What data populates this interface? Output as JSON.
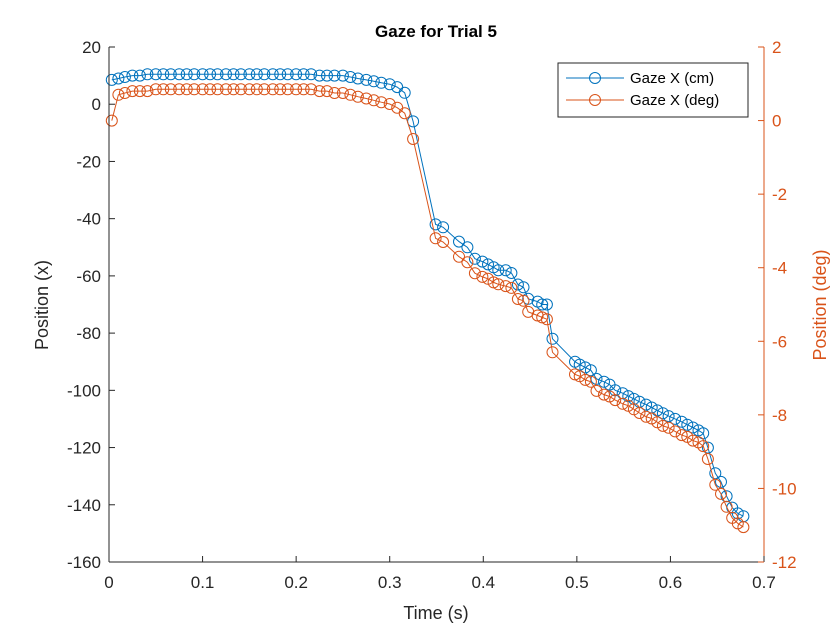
{
  "chart_data": {
    "type": "line",
    "title": "Gaze for Trial 5",
    "xlabel": "Time (s)",
    "ylabel_left": "Position (x)",
    "ylabel_right": "Position (deg)",
    "xlim": [
      0,
      0.7
    ],
    "ylim_left": [
      -160,
      20
    ],
    "ylim_right": [
      -12,
      2
    ],
    "xticks": [
      "0",
      "0.1",
      "0.2",
      "0.3",
      "0.4",
      "0.5",
      "0.6",
      "0.7"
    ],
    "yticks_left": [
      "20",
      "0",
      "-20",
      "-40",
      "-60",
      "-80",
      "-100",
      "-120",
      "-140",
      "-160"
    ],
    "yticks_right": [
      "2",
      "0",
      "-2",
      "-4",
      "-6",
      "-8",
      "-10",
      "-12"
    ],
    "legend_position": "top-right",
    "grid": false,
    "colors": {
      "cm": "#0072BD",
      "deg": "#D95319",
      "axis_left": "#262626",
      "axis_right": "#D95319"
    },
    "series": [
      {
        "name": "Gaze X (cm)",
        "axis": "left",
        "x": [
          0.003,
          0.01,
          0.017,
          0.025,
          0.033,
          0.041,
          0.05,
          0.058,
          0.066,
          0.075,
          0.083,
          0.091,
          0.1,
          0.108,
          0.116,
          0.125,
          0.133,
          0.141,
          0.15,
          0.158,
          0.166,
          0.175,
          0.183,
          0.191,
          0.2,
          0.208,
          0.216,
          0.225,
          0.233,
          0.241,
          0.25,
          0.258,
          0.266,
          0.275,
          0.283,
          0.291,
          0.3,
          0.308,
          0.316,
          0.325,
          0.349,
          0.357,
          0.374,
          0.383,
          0.391,
          0.399,
          0.405,
          0.411,
          0.416,
          0.424,
          0.43,
          0.437,
          0.443,
          0.448,
          0.458,
          0.463,
          0.468,
          0.474,
          0.498,
          0.503,
          0.509,
          0.515,
          0.521,
          0.529,
          0.535,
          0.541,
          0.549,
          0.555,
          0.561,
          0.567,
          0.574,
          0.58,
          0.586,
          0.592,
          0.598,
          0.605,
          0.612,
          0.618,
          0.624,
          0.63,
          0.635,
          0.64,
          0.648,
          0.654,
          0.66,
          0.666,
          0.672,
          0.678
        ],
        "y": [
          8.5,
          9,
          9.5,
          10,
          10,
          10.5,
          10.5,
          10.5,
          10.5,
          10.5,
          10.5,
          10.5,
          10.5,
          10.5,
          10.5,
          10.5,
          10.5,
          10.5,
          10.5,
          10.5,
          10.5,
          10.5,
          10.5,
          10.5,
          10.5,
          10.5,
          10.5,
          10,
          10,
          10,
          10,
          9.5,
          9,
          8.5,
          8,
          7.5,
          7,
          6,
          4,
          -6,
          -42,
          -43,
          -48,
          -50,
          -54,
          -55,
          -56,
          -57,
          -58,
          -58,
          -59,
          -63,
          -64,
          -68,
          -69,
          -70,
          -70,
          -82,
          -90,
          -91,
          -92,
          -93,
          -96,
          -97,
          -98,
          -100,
          -101,
          -102,
          -103,
          -104,
          -105,
          -106,
          -107,
          -108,
          -109,
          -110,
          -111,
          -112,
          -113,
          -114,
          -115,
          -120,
          -129,
          -132,
          -137,
          -141,
          -143,
          -144
        ]
      },
      {
        "name": "Gaze X (deg)",
        "axis": "right",
        "x": [
          0.003,
          0.01,
          0.017,
          0.025,
          0.033,
          0.041,
          0.05,
          0.058,
          0.066,
          0.075,
          0.083,
          0.091,
          0.1,
          0.108,
          0.116,
          0.125,
          0.133,
          0.141,
          0.15,
          0.158,
          0.166,
          0.175,
          0.183,
          0.191,
          0.2,
          0.208,
          0.216,
          0.225,
          0.233,
          0.241,
          0.25,
          0.258,
          0.266,
          0.275,
          0.283,
          0.291,
          0.3,
          0.308,
          0.316,
          0.325,
          0.349,
          0.357,
          0.374,
          0.383,
          0.391,
          0.399,
          0.405,
          0.411,
          0.416,
          0.424,
          0.43,
          0.437,
          0.443,
          0.448,
          0.458,
          0.463,
          0.468,
          0.474,
          0.498,
          0.503,
          0.509,
          0.515,
          0.521,
          0.529,
          0.535,
          0.541,
          0.549,
          0.555,
          0.561,
          0.567,
          0.574,
          0.58,
          0.586,
          0.592,
          0.598,
          0.605,
          0.612,
          0.618,
          0.624,
          0.63,
          0.635,
          0.64,
          0.648,
          0.654,
          0.66,
          0.666,
          0.672,
          0.678
        ],
        "y": [
          0,
          0.7,
          0.75,
          0.8,
          0.8,
          0.8,
          0.85,
          0.85,
          0.85,
          0.85,
          0.85,
          0.85,
          0.85,
          0.85,
          0.85,
          0.85,
          0.85,
          0.85,
          0.85,
          0.85,
          0.85,
          0.85,
          0.85,
          0.85,
          0.85,
          0.85,
          0.85,
          0.8,
          0.8,
          0.75,
          0.75,
          0.7,
          0.65,
          0.6,
          0.55,
          0.5,
          0.45,
          0.35,
          0.2,
          -0.5,
          -3.2,
          -3.3,
          -3.7,
          -3.85,
          -4.15,
          -4.25,
          -4.3,
          -4.4,
          -4.45,
          -4.5,
          -4.55,
          -4.85,
          -4.9,
          -5.2,
          -5.3,
          -5.35,
          -5.4,
          -6.3,
          -6.9,
          -6.95,
          -7.05,
          -7.1,
          -7.35,
          -7.45,
          -7.5,
          -7.6,
          -7.7,
          -7.75,
          -7.85,
          -7.95,
          -8.05,
          -8.1,
          -8.2,
          -8.3,
          -8.35,
          -8.45,
          -8.55,
          -8.6,
          -8.7,
          -8.75,
          -8.85,
          -9.2,
          -9.9,
          -10.15,
          -10.5,
          -10.8,
          -10.95,
          -11.05
        ]
      }
    ]
  }
}
